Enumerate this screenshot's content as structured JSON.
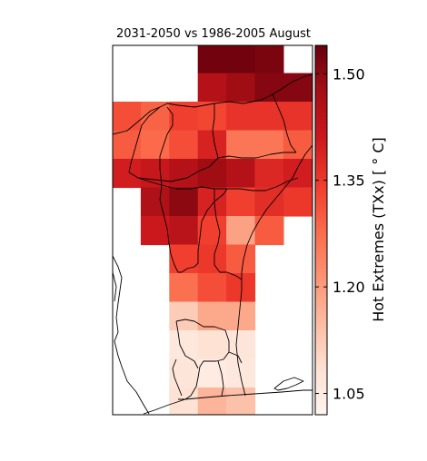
{
  "title": "2031-2050 vs 1986-2005 August",
  "colorbar": {
    "label": "Hot Extremes (TXx) [$^\\circ C$]",
    "label_display": "Hot Extremes (TXx) [ ° C]",
    "min": 1.02,
    "max": 1.54,
    "ticks": [
      1.05,
      1.2,
      1.35,
      1.5
    ],
    "tick_labels": [
      "1.05",
      "1.20",
      "1.35",
      "1.50"
    ],
    "colormap": "Reds",
    "colors": [
      "#fff5f0",
      "#fee0d2",
      "#fcbba1",
      "#fc9272",
      "#fb6a4a",
      "#ef3b2c",
      "#cb181d",
      "#a50f15",
      "#67000d"
    ]
  },
  "grid": {
    "columns": 7,
    "rows": 13,
    "values": [
      [
        null,
        null,
        null,
        1.53,
        1.53,
        1.52,
        null
      ],
      [
        null,
        null,
        null,
        1.45,
        1.48,
        1.51,
        1.51
      ],
      [
        1.32,
        1.29,
        1.34,
        1.33,
        1.36,
        1.36,
        1.36
      ],
      [
        1.3,
        1.28,
        1.32,
        1.39,
        1.26,
        1.26,
        1.3
      ],
      [
        1.4,
        1.42,
        1.45,
        1.48,
        1.45,
        1.38,
        1.4
      ],
      [
        null,
        1.46,
        1.5,
        1.39,
        1.34,
        1.37,
        1.35
      ],
      [
        null,
        1.41,
        1.44,
        1.34,
        1.19,
        1.3,
        null
      ],
      [
        null,
        null,
        1.34,
        1.35,
        1.3,
        null,
        null
      ],
      [
        null,
        null,
        1.27,
        1.32,
        1.35,
        null,
        null
      ],
      [
        null,
        null,
        1.12,
        1.18,
        1.18,
        null,
        null
      ],
      [
        null,
        null,
        1.06,
        1.08,
        1.07,
        null,
        null
      ],
      [
        null,
        null,
        1.07,
        1.05,
        1.06,
        null,
        null
      ],
      [
        null,
        null,
        1.08,
        1.16,
        1.14,
        null,
        null
      ]
    ]
  }
}
